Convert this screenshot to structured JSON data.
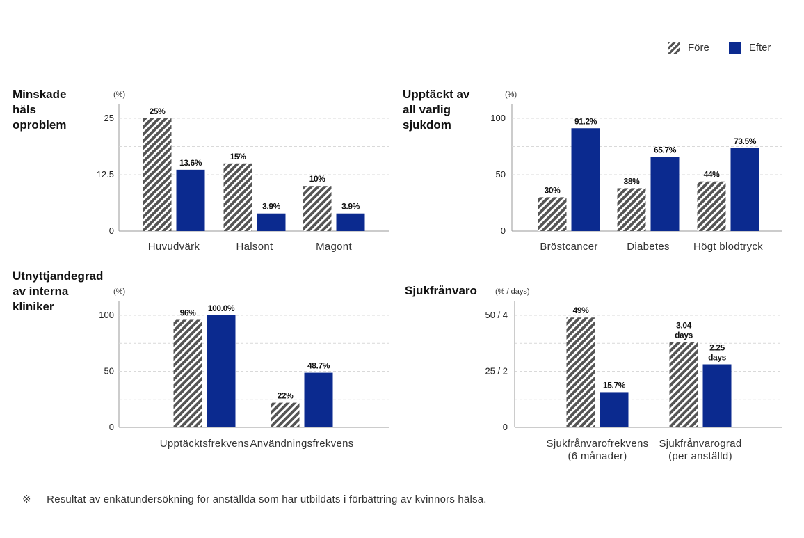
{
  "legend": {
    "before_label": "Före",
    "after_label": "Efter",
    "colors": {
      "before": "#555555",
      "after": "#0b2a8f"
    }
  },
  "footnote": {
    "mark": "※",
    "text": "Resultat av enkätundersökning för anställda som har utbildats i förbättring av kvinnors hälsa."
  },
  "chart_data": [
    {
      "type": "bar",
      "title_lines": [
        "Minskade",
        "häls",
        "oproblem"
      ],
      "unit": "(%)",
      "categories": [
        [
          "Huvudvärk"
        ],
        [
          "Halsont"
        ],
        [
          "Magont"
        ]
      ],
      "ylim": [
        0,
        30
      ],
      "yticks": [
        0,
        12.5,
        25
      ],
      "ytick_labels": [
        "0",
        "12.5",
        "25"
      ],
      "series": [
        {
          "name": "Före",
          "values": [
            25,
            15,
            10
          ],
          "labels": [
            [
              "25%"
            ],
            [
              "15%"
            ],
            [
              "10%"
            ]
          ]
        },
        {
          "name": "Efter",
          "values": [
            13.6,
            3.9,
            3.9
          ],
          "labels": [
            [
              "13.6%"
            ],
            [
              "3.9%"
            ],
            [
              "3.9%"
            ]
          ]
        }
      ]
    },
    {
      "type": "bar",
      "title_lines": [
        "Upptäckt av",
        "all varlig",
        "sjukdom"
      ],
      "unit": "(%)",
      "categories": [
        [
          "Bröstcancer"
        ],
        [
          "Diabetes"
        ],
        [
          "Högt blodtryck"
        ]
      ],
      "ylim": [
        0,
        110
      ],
      "yticks": [
        0,
        50,
        100
      ],
      "ytick_labels": [
        "0",
        "50",
        "100"
      ],
      "series": [
        {
          "name": "Före",
          "values": [
            30,
            38,
            44
          ],
          "labels": [
            [
              "30%"
            ],
            [
              "38%"
            ],
            [
              "44%"
            ]
          ]
        },
        {
          "name": "Efter",
          "values": [
            91.2,
            65.7,
            73.5
          ],
          "labels": [
            [
              "91.2%"
            ],
            [
              "65.7%"
            ],
            [
              "73.5%"
            ]
          ]
        }
      ]
    },
    {
      "type": "bar",
      "title_lines": [
        "Utnyttjandegrad",
        "av interna",
        "kliniker"
      ],
      "unit": "(%)",
      "categories": [
        [
          "Upptäcktsfrekvens"
        ],
        [
          "Användningsfrekvens"
        ]
      ],
      "ylim": [
        0,
        112
      ],
      "yticks": [
        0,
        50,
        100
      ],
      "ytick_labels": [
        "0",
        "50",
        "100"
      ],
      "series": [
        {
          "name": "Före",
          "values": [
            96,
            22
          ],
          "labels": [
            [
              "96%"
            ],
            [
              "22%"
            ]
          ]
        },
        {
          "name": "Efter",
          "values": [
            100,
            48.7
          ],
          "labels": [
            [
              "100.0%"
            ],
            [
              "48.7%"
            ]
          ]
        }
      ]
    },
    {
      "type": "bar",
      "title_lines": [
        "Sjukfrånvaro"
      ],
      "unit": "(% / days)",
      "categories": [
        [
          "Sjukfrånvarofrekvens",
          "(6 månader)"
        ],
        [
          "Sjukfrånvarograd",
          "(per anställd)"
        ]
      ],
      "ylim": [
        0,
        55
      ],
      "yticks": [
        0,
        25,
        50
      ],
      "ytick_labels": [
        "0",
        "25 / 2",
        "50 / 4"
      ],
      "series": [
        {
          "name": "Före",
          "values": [
            49,
            38
          ],
          "labels": [
            [
              "49%"
            ],
            [
              "3.04",
              "days"
            ]
          ]
        },
        {
          "name": "Efter",
          "values": [
            15.7,
            28.1
          ],
          "labels": [
            [
              "15.7%"
            ],
            [
              "2.25",
              "days"
            ]
          ]
        }
      ]
    }
  ]
}
